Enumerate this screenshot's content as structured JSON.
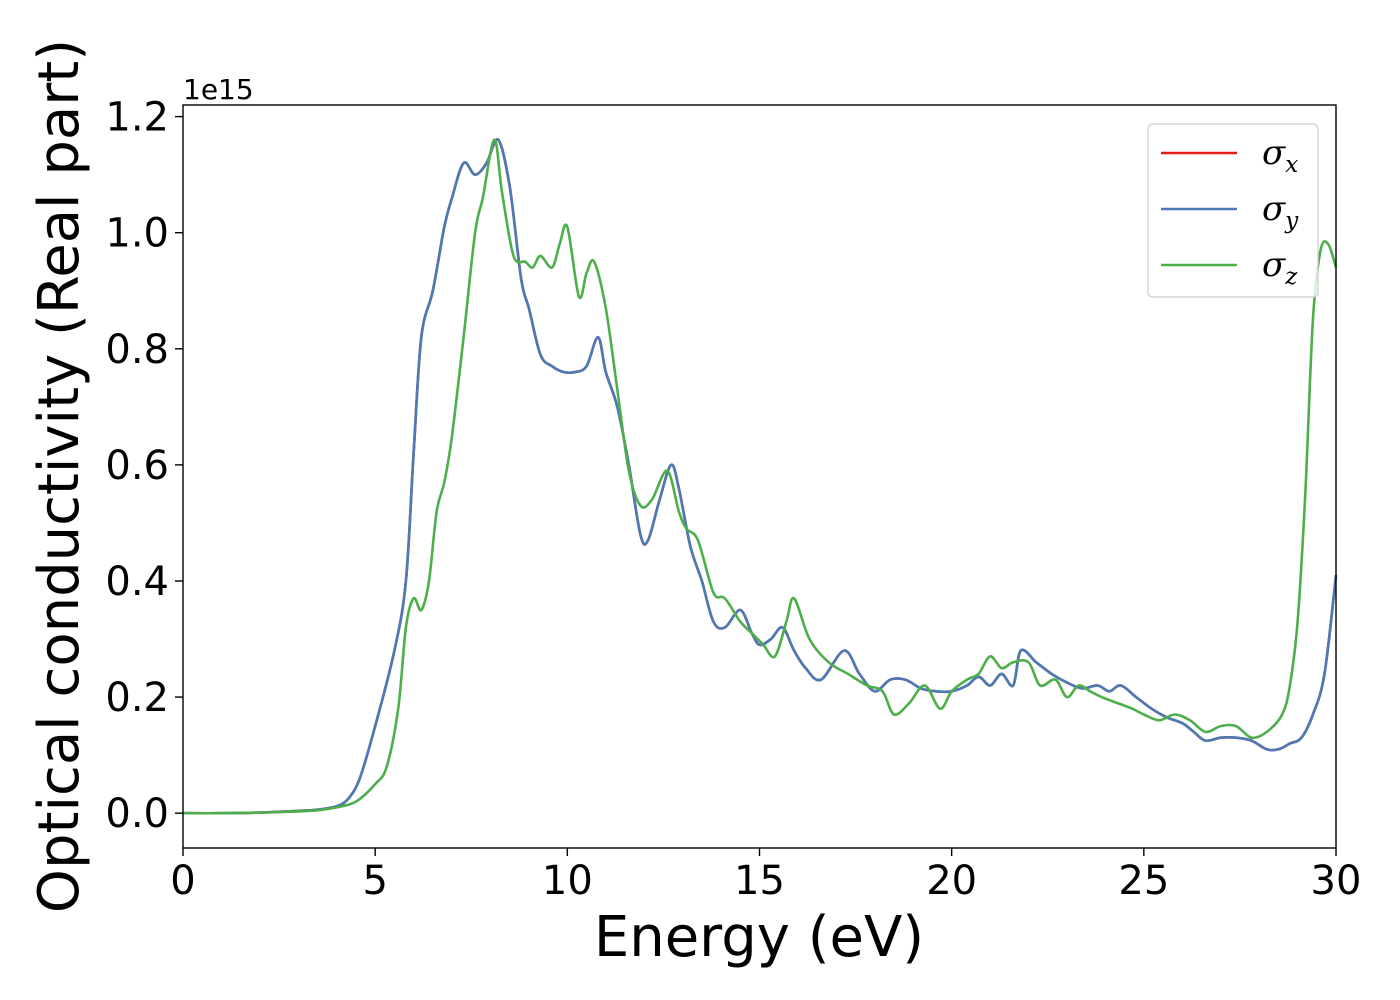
{
  "chart_data": {
    "type": "line",
    "xlabel": "Energy (eV)",
    "ylabel": "Optical conductivity (Real part)",
    "y_offset_label": "1e15",
    "xlim": [
      0,
      30
    ],
    "ylim": [
      -0.06,
      1.22
    ],
    "y_scale_factor": 1000000000000000.0,
    "xticks": [
      0,
      5,
      10,
      15,
      20,
      25,
      30
    ],
    "xtick_labels": [
      "0",
      "5",
      "10",
      "15",
      "20",
      "25",
      "30"
    ],
    "yticks": [
      0.0,
      0.2,
      0.4,
      0.6,
      0.8,
      1.0,
      1.2
    ],
    "ytick_labels": [
      "0.0",
      "0.2",
      "0.4",
      "0.6",
      "0.8",
      "1.0",
      "1.2"
    ],
    "grid": false,
    "legend_position": "top-right",
    "series": [
      {
        "name": "σx",
        "legend_base": "σ",
        "legend_sub": "x",
        "color": "#e41a1c",
        "x": [
          0,
          1,
          2,
          3,
          3.5,
          4,
          4.3,
          4.6,
          5,
          5.5,
          5.8,
          6.0,
          6.2,
          6.5,
          6.8,
          7.0,
          7.3,
          7.6,
          7.9,
          8.2,
          8.5,
          8.8,
          9.0,
          9.3,
          9.6,
          9.9,
          10.2,
          10.5,
          10.8,
          11.0,
          11.3,
          11.6,
          11.9,
          12.1,
          12.4,
          12.7,
          12.9,
          13.2,
          13.5,
          13.8,
          14.1,
          14.5,
          14.8,
          15.0,
          15.3,
          15.6,
          15.9,
          16.2,
          16.6,
          17.2,
          17.6,
          18.0,
          18.4,
          18.8,
          19.2,
          19.6,
          20.0,
          20.4,
          20.7,
          21.0,
          21.3,
          21.6,
          21.8,
          22.2,
          22.6,
          23.0,
          23.4,
          23.8,
          24.1,
          24.4,
          24.8,
          25.2,
          25.6,
          26.0,
          26.3,
          26.6,
          27.0,
          27.4,
          27.8,
          28.2,
          28.5,
          28.8,
          29.1,
          29.4,
          29.7,
          30.0
        ],
        "y": [
          0.0,
          0.0,
          0.001,
          0.004,
          0.006,
          0.012,
          0.025,
          0.06,
          0.15,
          0.28,
          0.4,
          0.62,
          0.82,
          0.9,
          1.01,
          1.06,
          1.12,
          1.1,
          1.12,
          1.16,
          1.08,
          0.92,
          0.87,
          0.79,
          0.77,
          0.76,
          0.76,
          0.77,
          0.82,
          0.76,
          0.7,
          0.6,
          0.48,
          0.47,
          0.54,
          0.6,
          0.56,
          0.46,
          0.4,
          0.33,
          0.32,
          0.35,
          0.31,
          0.29,
          0.3,
          0.32,
          0.28,
          0.25,
          0.23,
          0.28,
          0.24,
          0.21,
          0.23,
          0.23,
          0.215,
          0.21,
          0.21,
          0.22,
          0.235,
          0.22,
          0.24,
          0.22,
          0.28,
          0.26,
          0.24,
          0.225,
          0.215,
          0.22,
          0.21,
          0.22,
          0.2,
          0.18,
          0.165,
          0.155,
          0.14,
          0.125,
          0.13,
          0.13,
          0.125,
          0.11,
          0.11,
          0.12,
          0.13,
          0.17,
          0.24,
          0.41
        ]
      },
      {
        "name": "σy",
        "legend_base": "σ",
        "legend_sub": "y",
        "color": "#4a7bb7",
        "x": [
          0,
          1,
          2,
          3,
          3.5,
          4,
          4.3,
          4.6,
          5,
          5.5,
          5.8,
          6.0,
          6.2,
          6.5,
          6.8,
          7.0,
          7.3,
          7.6,
          7.9,
          8.2,
          8.5,
          8.8,
          9.0,
          9.3,
          9.6,
          9.9,
          10.2,
          10.5,
          10.8,
          11.0,
          11.3,
          11.6,
          11.9,
          12.1,
          12.4,
          12.7,
          12.9,
          13.2,
          13.5,
          13.8,
          14.1,
          14.5,
          14.8,
          15.0,
          15.3,
          15.6,
          15.9,
          16.2,
          16.6,
          17.2,
          17.6,
          18.0,
          18.4,
          18.8,
          19.2,
          19.6,
          20.0,
          20.4,
          20.7,
          21.0,
          21.3,
          21.6,
          21.8,
          22.2,
          22.6,
          23.0,
          23.4,
          23.8,
          24.1,
          24.4,
          24.8,
          25.2,
          25.6,
          26.0,
          26.3,
          26.6,
          27.0,
          27.4,
          27.8,
          28.2,
          28.5,
          28.8,
          29.1,
          29.4,
          29.7,
          30.0
        ],
        "y": [
          0.0,
          0.0,
          0.001,
          0.004,
          0.006,
          0.012,
          0.025,
          0.06,
          0.15,
          0.28,
          0.4,
          0.62,
          0.82,
          0.9,
          1.01,
          1.06,
          1.12,
          1.1,
          1.12,
          1.16,
          1.08,
          0.92,
          0.87,
          0.79,
          0.77,
          0.76,
          0.76,
          0.77,
          0.82,
          0.76,
          0.7,
          0.6,
          0.48,
          0.47,
          0.54,
          0.6,
          0.56,
          0.46,
          0.4,
          0.33,
          0.32,
          0.35,
          0.31,
          0.29,
          0.3,
          0.32,
          0.28,
          0.25,
          0.23,
          0.28,
          0.24,
          0.21,
          0.23,
          0.23,
          0.215,
          0.21,
          0.21,
          0.22,
          0.235,
          0.22,
          0.24,
          0.22,
          0.28,
          0.26,
          0.24,
          0.225,
          0.215,
          0.22,
          0.21,
          0.22,
          0.2,
          0.18,
          0.165,
          0.155,
          0.14,
          0.125,
          0.13,
          0.13,
          0.125,
          0.11,
          0.11,
          0.12,
          0.13,
          0.17,
          0.24,
          0.41
        ]
      },
      {
        "name": "σz",
        "legend_base": "σ",
        "legend_sub": "z",
        "color": "#4daf4a",
        "x": [
          0,
          1,
          2,
          3,
          3.5,
          4,
          4.5,
          5,
          5.3,
          5.6,
          5.8,
          6.0,
          6.2,
          6.4,
          6.6,
          6.8,
          7.0,
          7.3,
          7.6,
          7.8,
          8.1,
          8.3,
          8.6,
          8.9,
          9.1,
          9.3,
          9.6,
          9.8,
          10.0,
          10.3,
          10.5,
          10.7,
          11.0,
          11.3,
          11.6,
          11.9,
          12.2,
          12.6,
          12.9,
          13.1,
          13.4,
          13.8,
          14.1,
          14.5,
          14.8,
          15.1,
          15.4,
          15.7,
          15.9,
          16.3,
          16.8,
          17.3,
          17.8,
          18.2,
          18.5,
          18.9,
          19.3,
          19.7,
          20.0,
          20.4,
          20.7,
          21.0,
          21.3,
          21.6,
          22.0,
          22.3,
          22.7,
          23.0,
          23.3,
          23.6,
          23.9,
          24.3,
          24.7,
          25.0,
          25.4,
          25.8,
          26.2,
          26.6,
          27.0,
          27.4,
          27.8,
          28.2,
          28.6,
          28.8,
          29.0,
          29.2,
          29.4,
          29.6,
          29.8,
          30.0
        ],
        "y": [
          0.0,
          0.0,
          0.001,
          0.003,
          0.005,
          0.01,
          0.02,
          0.05,
          0.08,
          0.18,
          0.32,
          0.37,
          0.35,
          0.4,
          0.52,
          0.57,
          0.65,
          0.82,
          1.0,
          1.06,
          1.16,
          1.07,
          0.96,
          0.95,
          0.94,
          0.96,
          0.94,
          0.98,
          1.01,
          0.89,
          0.93,
          0.95,
          0.87,
          0.73,
          0.59,
          0.53,
          0.54,
          0.59,
          0.52,
          0.49,
          0.47,
          0.38,
          0.37,
          0.33,
          0.31,
          0.29,
          0.27,
          0.33,
          0.37,
          0.3,
          0.26,
          0.24,
          0.22,
          0.21,
          0.17,
          0.19,
          0.22,
          0.18,
          0.21,
          0.23,
          0.24,
          0.27,
          0.25,
          0.26,
          0.26,
          0.22,
          0.23,
          0.2,
          0.22,
          0.21,
          0.2,
          0.19,
          0.18,
          0.17,
          0.16,
          0.17,
          0.16,
          0.14,
          0.15,
          0.15,
          0.13,
          0.14,
          0.17,
          0.22,
          0.33,
          0.55,
          0.85,
          0.97,
          0.98,
          0.94
        ]
      }
    ]
  }
}
